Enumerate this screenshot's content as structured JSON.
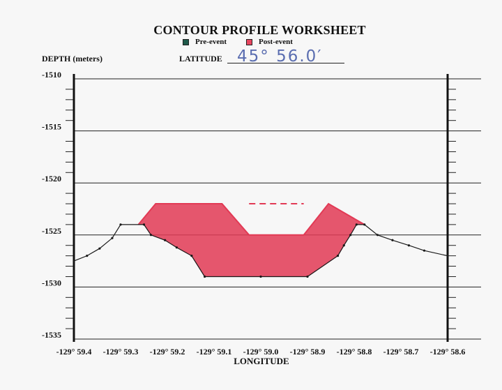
{
  "header": {
    "title": "CONTOUR PROFILE WORKSHEET",
    "legend": [
      {
        "label": "Pre-event",
        "color": "#1f5a4a"
      },
      {
        "label": "Post-event",
        "color": "#e8465f"
      }
    ],
    "depth_label": "DEPTH  (meters)",
    "latitude_label": "LATITUDE",
    "latitude_value": "45° 56.0′"
  },
  "chart_data": {
    "type": "area",
    "ylabel": "DEPTH  (meters)",
    "xlabel": "LONGITUDE",
    "xlim": [
      -129.94,
      -129.86
    ],
    "ylim": [
      -1535,
      -1510
    ],
    "x_ticks": [
      -129.94,
      -129.93,
      -129.92,
      -129.91,
      -129.9,
      -129.89,
      -129.88,
      -129.87,
      -129.86
    ],
    "x_tick_labels": [
      "-129° 59.4",
      "-129° 59.3",
      "-129° 59.2",
      "-129° 59.1",
      "-129° 59.0",
      "-129° 58.9",
      "-129° 58.8",
      "-129° 58.7",
      "-129° 58.6"
    ],
    "y_ticks": [
      -1510,
      -1515,
      -1520,
      -1525,
      -1530,
      -1535
    ],
    "y_tick_labels": [
      "-1510",
      "-1515",
      "-1520",
      "-1525",
      "-1530",
      "-1535"
    ],
    "grid": true,
    "series": [
      {
        "name": "Pre-event",
        "color": "#1a1a1a",
        "x": [
          -129.94,
          -129.9372,
          -129.9345,
          -129.9318,
          -129.93,
          -129.925,
          -129.9235,
          -129.9205,
          -129.918,
          -129.9148,
          -129.912,
          -129.9,
          -129.89,
          -129.8835,
          -129.8822,
          -129.8808,
          -129.8795,
          -129.8778,
          -129.875,
          -129.8718,
          -129.8683,
          -129.865,
          -129.86
        ],
        "y": [
          -1527.5,
          -1527.0,
          -1526.3,
          -1525.3,
          -1524.0,
          -1524.0,
          -1525.0,
          -1525.5,
          -1526.2,
          -1527.0,
          -1529.0,
          -1529.0,
          -1529.0,
          -1527.0,
          -1526.0,
          -1525.0,
          -1524.0,
          -1524.0,
          -1525.0,
          -1525.5,
          -1526.0,
          -1526.5,
          -1527.0
        ]
      },
      {
        "name": "Post-event",
        "color": "#e8465f",
        "x": [
          -129.9262,
          -129.9225,
          -129.9083,
          -129.9025,
          -129.8908,
          -129.8855,
          -129.8778
        ],
        "y": [
          -1524.0,
          -1522.0,
          -1522.0,
          -1525.0,
          -1525.0,
          -1522.0,
          -1524.0
        ],
        "upper_dashed_segment": {
          "x": [
            -129.9025,
            -129.8908
          ],
          "y": [
            -1522.0,
            -1522.0
          ]
        }
      }
    ]
  },
  "chart_style": {
    "pre_line_color": "#1a1a1a",
    "fill_color": "#e23a55",
    "fill_opacity": 0.85,
    "grid_color": "#222222",
    "frame_color": "#111111"
  }
}
